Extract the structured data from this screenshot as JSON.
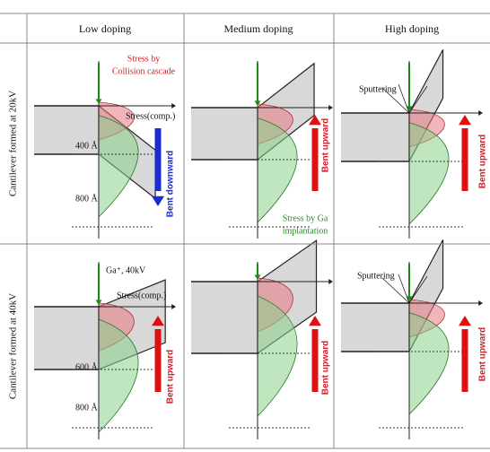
{
  "header": {
    "columns": [
      "Low doping",
      "Medium doping",
      "High doping"
    ]
  },
  "rows": [
    {
      "label": "Cantilever formed at 20kV",
      "cells": [
        {
          "stress_label": [
            "Stress by",
            "Collision cascade"
          ],
          "axis_label": "Stress(comp.)",
          "depth_labels": [
            "400 Å",
            "800 Å"
          ],
          "bend": "Bent downward"
        },
        {
          "bend": "Bent upward",
          "implant_label": [
            "Stress by Ga",
            "implantation"
          ]
        },
        {
          "sputter": "Sputtering",
          "bend": "Bent upward"
        }
      ]
    },
    {
      "label": "Cantilever formed at 40kV",
      "cells": [
        {
          "beam": "Ga⁺, 40kV",
          "axis_label": "Stress(comp.)",
          "depth_labels": [
            "600 Å",
            "800 Å"
          ],
          "bend": "Bent upward"
        },
        {
          "bend": "Bent upward"
        },
        {
          "sputter": "Sputtering",
          "bend": "Bent upward"
        }
      ]
    }
  ]
}
